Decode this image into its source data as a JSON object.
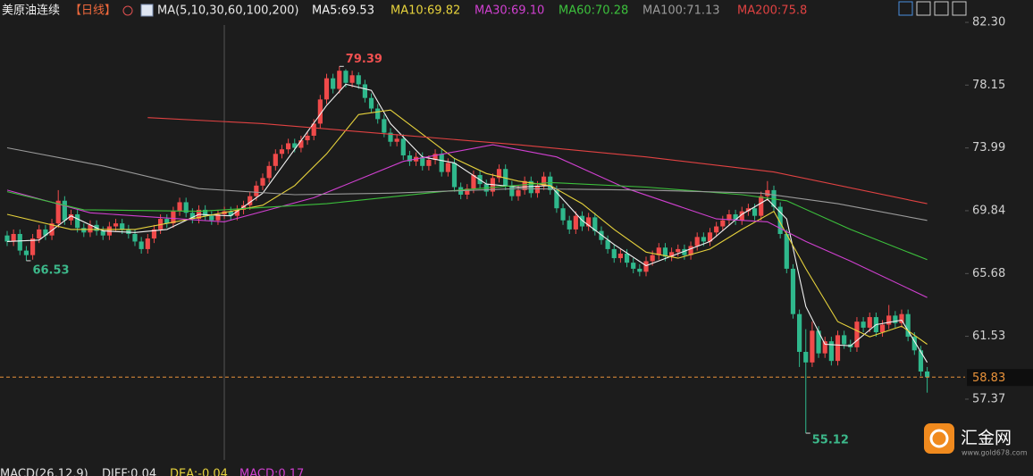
{
  "chart_data": {
    "type": "candlestick",
    "title": "美原油连续",
    "period": "【日线】",
    "indicator": "MA(5,10,30,60,100,200)",
    "up_color": "#f04a4a",
    "down_color": "#2fb88c",
    "background": "#1c1c1c",
    "ylim": [
      53.35,
      83.78
    ],
    "yticks": [
      {
        "value": 82.3,
        "label": "82.30"
      },
      78.15,
      73.99,
      69.84,
      65.68,
      61.53,
      57.37
    ],
    "grid": false,
    "price_line_color": "#e8923a",
    "open": [
      68.2,
      67.8,
      68.3,
      67.2,
      66.9,
      68.0,
      68.6,
      68.2,
      69.0,
      70.5,
      69.2,
      69.6,
      68.7,
      68.4,
      68.9,
      68.5,
      68.2,
      68.8,
      69.0,
      68.6,
      68.3,
      67.8,
      67.3,
      68.0,
      68.6,
      69.3,
      69.0,
      69.8,
      70.4,
      69.7,
      69.3,
      69.9,
      69.5,
      69.2,
      69.6,
      69.8,
      69.5,
      69.9,
      70.2,
      70.8,
      71.5,
      72.0,
      72.8,
      73.6,
      73.9,
      74.3,
      74.0,
      74.5,
      74.8,
      75.6,
      77.2,
      78.6,
      77.9,
      79.1,
      78.3,
      78.8,
      78.2,
      77.3,
      76.6,
      75.9,
      75.0,
      74.4,
      74.6,
      73.5,
      73.1,
      73.4,
      72.8,
      73.2,
      73.6,
      72.4,
      73.0,
      71.4,
      70.9,
      71.3,
      72.2,
      71.6,
      71.1,
      72.0,
      72.6,
      71.5,
      70.8,
      71.2,
      71.8,
      71.0,
      71.5,
      72.1,
      71.2,
      70.0,
      69.2,
      68.6,
      69.5,
      68.8,
      69.4,
      68.5,
      67.9,
      67.3,
      66.7,
      67.0,
      66.4,
      66.0,
      65.8,
      66.5,
      66.9,
      67.4,
      66.8,
      67.1,
      67.3,
      66.9,
      67.5,
      68.1,
      67.8,
      68.4,
      68.8,
      69.2,
      69.6,
      69.2,
      69.8,
      70.0,
      69.5,
      70.8,
      71.2,
      70.1,
      68.3,
      66.0,
      63.0,
      60.5,
      59.8,
      61.9,
      60.4,
      61.2,
      59.9,
      61.6,
      61.0,
      60.8,
      62.5,
      62.1,
      62.8,
      61.8,
      62.3,
      62.9,
      62.4,
      63.0,
      61.5,
      60.6,
      59.2
    ],
    "high": [
      68.5,
      68.6,
      68.6,
      67.5,
      68.3,
      68.9,
      68.9,
      69.3,
      71.2,
      70.8,
      69.9,
      69.9,
      69.0,
      69.2,
      69.2,
      68.8,
      69.1,
      69.3,
      69.3,
      68.9,
      68.6,
      68.1,
      68.3,
      68.9,
      69.6,
      69.6,
      70.1,
      70.7,
      70.7,
      70.0,
      70.2,
      70.2,
      69.8,
      69.9,
      70.1,
      70.1,
      70.2,
      70.5,
      71.1,
      71.8,
      72.3,
      73.1,
      73.9,
      74.2,
      74.6,
      74.6,
      74.8,
      75.1,
      75.9,
      77.5,
      78.9,
      78.9,
      79.39,
      79.2,
      79.1,
      79.0,
      78.5,
      77.6,
      76.9,
      76.2,
      75.3,
      74.9,
      74.9,
      73.8,
      73.7,
      73.7,
      73.5,
      73.9,
      73.9,
      73.3,
      73.3,
      71.7,
      71.6,
      72.5,
      72.5,
      71.9,
      72.3,
      72.9,
      72.9,
      71.8,
      71.5,
      72.1,
      72.1,
      71.8,
      72.4,
      72.4,
      71.5,
      70.3,
      69.5,
      69.8,
      69.8,
      69.7,
      69.7,
      68.8,
      68.2,
      67.6,
      67.3,
      67.3,
      66.7,
      66.3,
      66.8,
      67.2,
      67.7,
      67.7,
      67.4,
      67.6,
      67.6,
      67.8,
      68.4,
      68.4,
      68.7,
      69.1,
      69.5,
      69.9,
      69.9,
      70.1,
      70.3,
      70.3,
      71.1,
      71.8,
      71.5,
      70.4,
      68.6,
      66.3,
      63.3,
      62.0,
      62.5,
      62.2,
      61.5,
      61.5,
      61.9,
      61.9,
      61.3,
      62.8,
      62.8,
      63.1,
      63.1,
      62.6,
      63.6,
      63.2,
      63.3,
      63.3,
      61.8,
      60.9,
      59.5
    ],
    "low": [
      67.5,
      67.5,
      66.9,
      66.53,
      66.6,
      67.7,
      67.9,
      67.9,
      68.7,
      68.9,
      68.9,
      68.4,
      68.1,
      68.1,
      68.2,
      67.9,
      67.9,
      68.5,
      68.3,
      68.0,
      67.5,
      67.0,
      67.0,
      67.7,
      68.3,
      68.7,
      68.7,
      69.5,
      69.4,
      69.0,
      69.0,
      69.2,
      68.9,
      68.9,
      69.3,
      69.2,
      69.2,
      69.6,
      69.9,
      70.5,
      71.2,
      71.7,
      72.5,
      73.3,
      73.6,
      73.7,
      73.7,
      74.2,
      74.5,
      75.3,
      76.9,
      77.6,
      77.6,
      78.0,
      78.0,
      77.9,
      77.0,
      76.3,
      75.6,
      74.7,
      74.1,
      74.1,
      73.2,
      72.8,
      72.8,
      72.5,
      72.5,
      72.9,
      72.1,
      72.1,
      71.1,
      70.6,
      70.6,
      71.0,
      71.3,
      70.8,
      70.8,
      71.7,
      71.2,
      70.5,
      70.5,
      70.9,
      70.7,
      70.7,
      71.2,
      70.9,
      69.7,
      68.9,
      68.3,
      68.3,
      68.5,
      68.5,
      68.2,
      67.6,
      67.0,
      66.4,
      66.4,
      66.1,
      65.7,
      65.5,
      65.5,
      66.2,
      66.6,
      66.5,
      66.5,
      66.8,
      66.6,
      66.6,
      67.2,
      67.5,
      67.5,
      68.1,
      68.5,
      68.9,
      68.9,
      68.9,
      69.5,
      69.2,
      69.2,
      70.5,
      69.8,
      68.0,
      65.7,
      62.7,
      59.5,
      55.12,
      59.5,
      60.1,
      60.1,
      59.6,
      59.6,
      60.7,
      60.5,
      60.5,
      61.8,
      61.8,
      61.5,
      61.5,
      62.0,
      62.1,
      62.1,
      61.2,
      60.3,
      58.9,
      57.8
    ],
    "close": [
      67.8,
      68.3,
      67.2,
      66.9,
      68.0,
      68.6,
      68.2,
      69.0,
      70.5,
      69.2,
      69.6,
      68.7,
      68.4,
      68.9,
      68.5,
      68.2,
      68.8,
      69.0,
      68.6,
      68.3,
      67.8,
      67.3,
      68.0,
      68.6,
      69.3,
      69.0,
      69.8,
      70.4,
      69.7,
      69.3,
      69.9,
      69.5,
      69.2,
      69.6,
      69.8,
      69.5,
      69.9,
      70.2,
      70.8,
      71.5,
      72.0,
      72.8,
      73.6,
      73.9,
      74.3,
      74.0,
      74.5,
      74.8,
      75.6,
      77.2,
      78.6,
      77.9,
      79.1,
      78.3,
      78.8,
      78.2,
      77.3,
      76.6,
      75.9,
      75.0,
      74.4,
      74.6,
      73.5,
      73.1,
      73.4,
      72.8,
      73.2,
      73.6,
      72.4,
      73.0,
      71.4,
      70.9,
      71.3,
      72.2,
      71.6,
      71.1,
      72.0,
      72.6,
      71.5,
      70.8,
      71.2,
      71.8,
      71.0,
      71.5,
      72.1,
      71.2,
      70.0,
      69.2,
      68.6,
      69.5,
      68.8,
      69.4,
      68.5,
      67.9,
      67.3,
      66.7,
      67.0,
      66.4,
      66.0,
      65.8,
      66.5,
      66.9,
      67.4,
      66.8,
      67.1,
      67.3,
      66.9,
      67.5,
      68.1,
      67.8,
      68.4,
      68.8,
      69.2,
      69.6,
      69.2,
      69.8,
      70.0,
      69.5,
      70.8,
      71.2,
      70.1,
      68.3,
      66.0,
      63.0,
      60.5,
      59.8,
      61.9,
      60.4,
      61.2,
      59.9,
      61.6,
      61.0,
      60.8,
      62.5,
      62.1,
      62.8,
      61.8,
      62.3,
      62.9,
      62.4,
      63.0,
      61.5,
      60.6,
      59.2,
      58.83
    ],
    "series": [
      {
        "name": "MA5:69.53",
        "color": "#f2f2f2",
        "x": [
          0,
          5,
          10,
          15,
          20,
          25,
          30,
          35,
          40,
          45,
          50,
          53,
          57,
          60,
          65,
          70,
          75,
          80,
          85,
          90,
          95,
          100,
          105,
          110,
          115,
          119,
          122,
          125,
          128,
          132,
          136,
          140,
          144
        ],
        "values": [
          67.8,
          67.9,
          69.5,
          68.5,
          68.4,
          68.6,
          69.6,
          69.5,
          71.0,
          73.9,
          76.8,
          78.2,
          77.8,
          75.6,
          73.4,
          73.0,
          71.6,
          71.4,
          71.5,
          69.2,
          67.6,
          66.2,
          67.0,
          67.8,
          69.6,
          70.6,
          69.3,
          63.5,
          61.0,
          60.9,
          62.3,
          62.6,
          59.8
        ]
      },
      {
        "name": "MA10:69.82",
        "color": "#e6d23c",
        "x": [
          0,
          10,
          20,
          30,
          40,
          45,
          50,
          55,
          60,
          65,
          70,
          75,
          80,
          85,
          90,
          95,
          100,
          105,
          110,
          115,
          120,
          125,
          130,
          135,
          140,
          144
        ],
        "values": [
          69.6,
          68.6,
          68.6,
          69.4,
          70.2,
          71.5,
          73.6,
          76.2,
          76.5,
          74.9,
          73.3,
          72.3,
          71.8,
          71.5,
          70.3,
          68.6,
          67.1,
          66.7,
          67.3,
          68.6,
          69.8,
          66.0,
          62.5,
          61.5,
          62.2,
          61.0
        ]
      },
      {
        "name": "MA30:69.10",
        "color": "#d040d0",
        "x": [
          0,
          13,
          34,
          48,
          62,
          76,
          86,
          97,
          111,
          119,
          125,
          132,
          144
        ],
        "values": [
          71.2,
          69.7,
          69.1,
          70.7,
          73.1,
          74.2,
          73.4,
          71.3,
          69.3,
          69.1,
          67.8,
          66.5,
          64.1
        ]
      },
      {
        "name": "MA60:70.28",
        "color": "#3cc03c",
        "x": [
          0,
          12,
          30,
          50,
          68,
          85,
          100,
          115,
          122,
          132,
          144
        ],
        "values": [
          71.1,
          69.9,
          69.8,
          70.3,
          71.1,
          71.7,
          71.4,
          70.9,
          70.5,
          68.6,
          66.6
        ]
      },
      {
        "name": "MA100:71.13",
        "color": "#9a9a9a",
        "x": [
          0,
          15,
          30,
          45,
          60,
          80,
          100,
          118,
          130,
          144
        ],
        "values": [
          74.0,
          72.8,
          71.3,
          70.9,
          71.0,
          71.3,
          71.2,
          71.0,
          70.3,
          69.2
        ]
      },
      {
        "name": "MA200:75.8",
        "color": "#e04242",
        "x": [
          22,
          40,
          60,
          80,
          100,
          120,
          144
        ],
        "values": [
          76.0,
          75.6,
          74.9,
          74.2,
          73.4,
          72.4,
          70.3
        ]
      }
    ],
    "macd_legend": [
      {
        "text": "MACD(26,12,9)",
        "color": "#e0e0e0"
      },
      {
        "text": "DIFF:0.04",
        "color": "#e0e0e0"
      },
      {
        "text": "DEA:-0.04",
        "color": "#e6d23c"
      },
      {
        "text": "MACD:0.17",
        "color": "#d040d0"
      }
    ]
  },
  "logo": {
    "name": "汇金网",
    "url": "www.gold678.com"
  }
}
